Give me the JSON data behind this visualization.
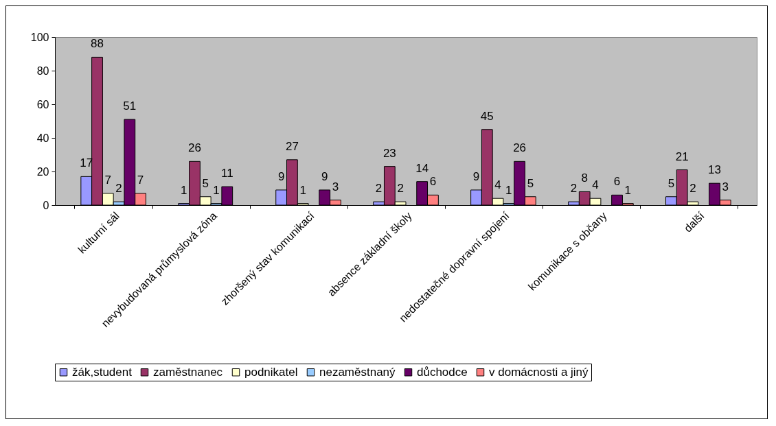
{
  "chart_data": {
    "type": "bar",
    "categories": [
      "kulturní sál",
      "nevybudovaná průmyslová zóna",
      "zhoršený stav komunikací",
      "absence základní školy",
      "nedostatečné dopravní spojení",
      "komunikace s občany",
      "další"
    ],
    "series": [
      {
        "name": "žák,student",
        "color": "#9999ff",
        "values": [
          17,
          1,
          9,
          2,
          9,
          2,
          5
        ]
      },
      {
        "name": "zaměstnanec",
        "color": "#993366",
        "values": [
          88,
          26,
          27,
          23,
          45,
          8,
          21
        ]
      },
      {
        "name": "podnikatel",
        "color": "#ffffcc",
        "values": [
          7,
          5,
          1,
          2,
          4,
          4,
          2
        ]
      },
      {
        "name": "nezaměstnaný",
        "color": "#99ccff",
        "values": [
          2,
          1,
          null,
          null,
          1,
          null,
          null
        ]
      },
      {
        "name": "důchodce",
        "color": "#660066",
        "values": [
          51,
          11,
          9,
          14,
          26,
          6,
          13
        ]
      },
      {
        "name": "v domácnosti a jiný",
        "color": "#ff8080",
        "values": [
          7,
          null,
          3,
          6,
          5,
          1,
          3
        ]
      }
    ],
    "ylim": [
      0,
      100
    ],
    "yticks": [
      0,
      20,
      40,
      60,
      80,
      100
    ],
    "data_labels": true,
    "grid": false,
    "legend": "bottom"
  }
}
